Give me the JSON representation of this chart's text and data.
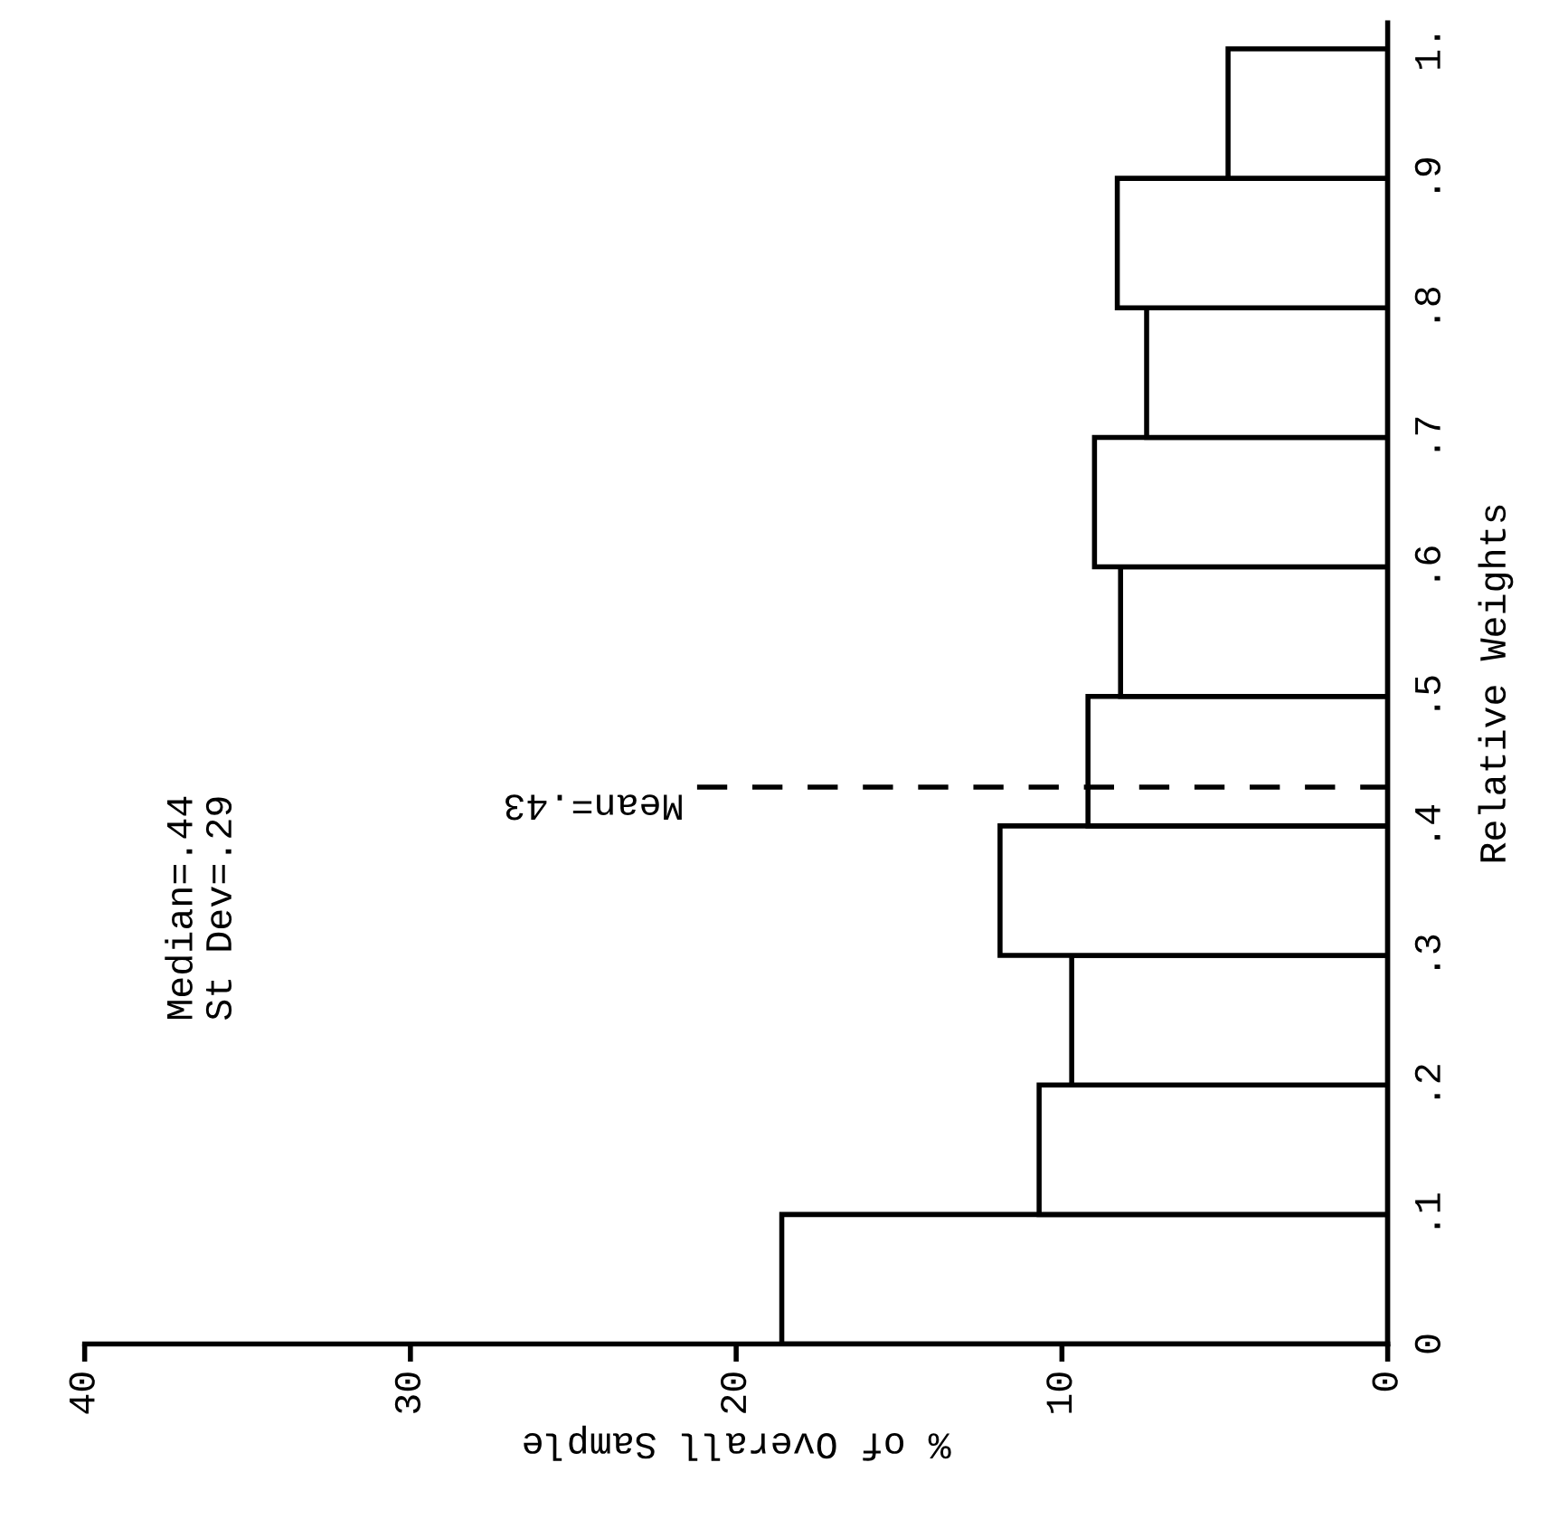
{
  "chart_data": {
    "type": "histogram",
    "orientation": "horizontal",
    "xlabel": "% of Overall Sample",
    "ylabel": "Relative Weights",
    "bins": [
      0,
      0.1,
      0.2,
      0.3,
      0.4,
      0.5,
      0.6,
      0.7,
      0.8,
      0.9,
      1.0
    ],
    "values": [
      18.6,
      10.7,
      9.7,
      11.9,
      9.2,
      8.2,
      9.0,
      7.4,
      8.3,
      4.9
    ],
    "color": "#ffffff",
    "xlim": [
      40,
      0
    ],
    "xticks": [
      0,
      10,
      20,
      30,
      40
    ],
    "ylim": [
      0,
      1.02
    ],
    "yticks": [
      {
        "value": 0,
        "label": "0"
      },
      {
        "value": 0.1,
        "label": ".1"
      },
      {
        "value": 0.2,
        "label": ".2"
      },
      {
        "value": 0.3,
        "label": ".3"
      },
      {
        "value": 0.4,
        "label": ".4"
      },
      {
        "value": 0.5,
        "label": ".5"
      },
      {
        "value": 0.6,
        "label": ".6"
      },
      {
        "value": 0.7,
        "label": ".7"
      },
      {
        "value": 0.8,
        "label": ".8"
      },
      {
        "value": 0.9,
        "label": ".9"
      },
      {
        "value": 1.0,
        "label": "1."
      }
    ],
    "ref_lines": [
      {
        "axis": "y",
        "value": 0.43,
        "label": "Mean=.43",
        "line_style": "dashed",
        "color": "#000000"
      }
    ],
    "annotations": [
      "Median=.44",
      "St Dev=.29"
    ]
  }
}
